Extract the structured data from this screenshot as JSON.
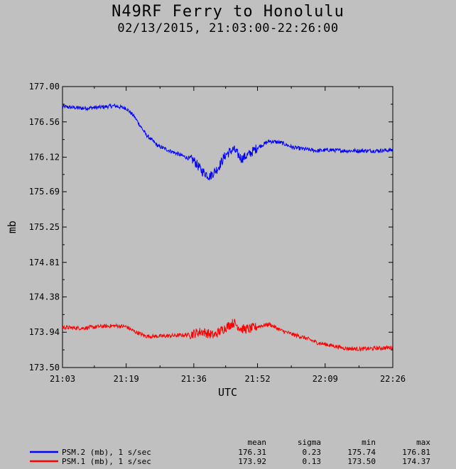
{
  "title": "N49RF Ferry to Honolulu",
  "subtitle": "02/13/2015, 21:03:00-22:26:00",
  "chart_data": {
    "type": "line",
    "xlabel": "UTC",
    "ylabel": "mb",
    "ylim": [
      173.5,
      177.0
    ],
    "xlim": [
      "21:03",
      "22:26"
    ],
    "y_ticks": [
      "173.50",
      "173.94",
      "174.38",
      "174.81",
      "175.25",
      "175.69",
      "176.12",
      "176.56",
      "177.00"
    ],
    "x_ticks": [
      "21:03",
      "21:19",
      "21:36",
      "21:52",
      "22:09",
      "22:26"
    ],
    "grid": false,
    "series": [
      {
        "name": "PSM.2 (mb), 1 s/sec",
        "color": "#0000ff",
        "points": [
          [
            "21:03",
            176.75
          ],
          [
            "21:08",
            176.73
          ],
          [
            "21:12",
            176.74
          ],
          [
            "21:16",
            176.76
          ],
          [
            "21:19",
            176.73
          ],
          [
            "21:21",
            176.63
          ],
          [
            "21:24",
            176.4
          ],
          [
            "21:27",
            176.26
          ],
          [
            "21:30",
            176.2
          ],
          [
            "21:33",
            176.14
          ],
          [
            "21:36",
            176.08
          ],
          [
            "21:38",
            175.95
          ],
          [
            "21:40",
            175.88
          ],
          [
            "21:42",
            175.98
          ],
          [
            "21:44",
            176.15
          ],
          [
            "21:46",
            176.22
          ],
          [
            "21:48",
            176.1
          ],
          [
            "21:50",
            176.16
          ],
          [
            "21:52",
            176.24
          ],
          [
            "21:55",
            176.32
          ],
          [
            "21:58",
            176.3
          ],
          [
            "22:01",
            176.24
          ],
          [
            "22:04",
            176.22
          ],
          [
            "22:07",
            176.2
          ],
          [
            "22:10",
            176.21
          ],
          [
            "22:14",
            176.2
          ],
          [
            "22:18",
            176.2
          ],
          [
            "22:22",
            176.2
          ],
          [
            "22:26",
            176.21
          ]
        ],
        "stats": {
          "mean": "176.31",
          "sigma": "0.23",
          "min": "175.74",
          "max": "176.81"
        }
      },
      {
        "name": "PSM.1 (mb), 1 s/sec",
        "color": "#ff0000",
        "points": [
          [
            "21:03",
            174.0
          ],
          [
            "21:08",
            173.99
          ],
          [
            "21:12",
            174.01
          ],
          [
            "21:16",
            174.02
          ],
          [
            "21:19",
            174.01
          ],
          [
            "21:21",
            173.95
          ],
          [
            "21:24",
            173.89
          ],
          [
            "21:28",
            173.89
          ],
          [
            "21:32",
            173.9
          ],
          [
            "21:35",
            173.91
          ],
          [
            "21:38",
            173.95
          ],
          [
            "21:41",
            173.9
          ],
          [
            "21:44",
            174.0
          ],
          [
            "21:46",
            174.06
          ],
          [
            "21:48",
            173.98
          ],
          [
            "21:50",
            173.98
          ],
          [
            "21:52",
            174.01
          ],
          [
            "21:55",
            174.04
          ],
          [
            "21:58",
            173.96
          ],
          [
            "22:01",
            173.91
          ],
          [
            "22:04",
            173.87
          ],
          [
            "22:07",
            173.81
          ],
          [
            "22:10",
            173.78
          ],
          [
            "22:14",
            173.74
          ],
          [
            "22:18",
            173.73
          ],
          [
            "22:22",
            173.74
          ],
          [
            "22:26",
            173.75
          ]
        ],
        "stats": {
          "mean": "173.92",
          "sigma": "0.13",
          "min": "173.50",
          "max": "174.37"
        }
      }
    ]
  },
  "legend": {
    "headers": {
      "mean": "mean",
      "sigma": "sigma",
      "min": "min",
      "max": "max"
    }
  }
}
